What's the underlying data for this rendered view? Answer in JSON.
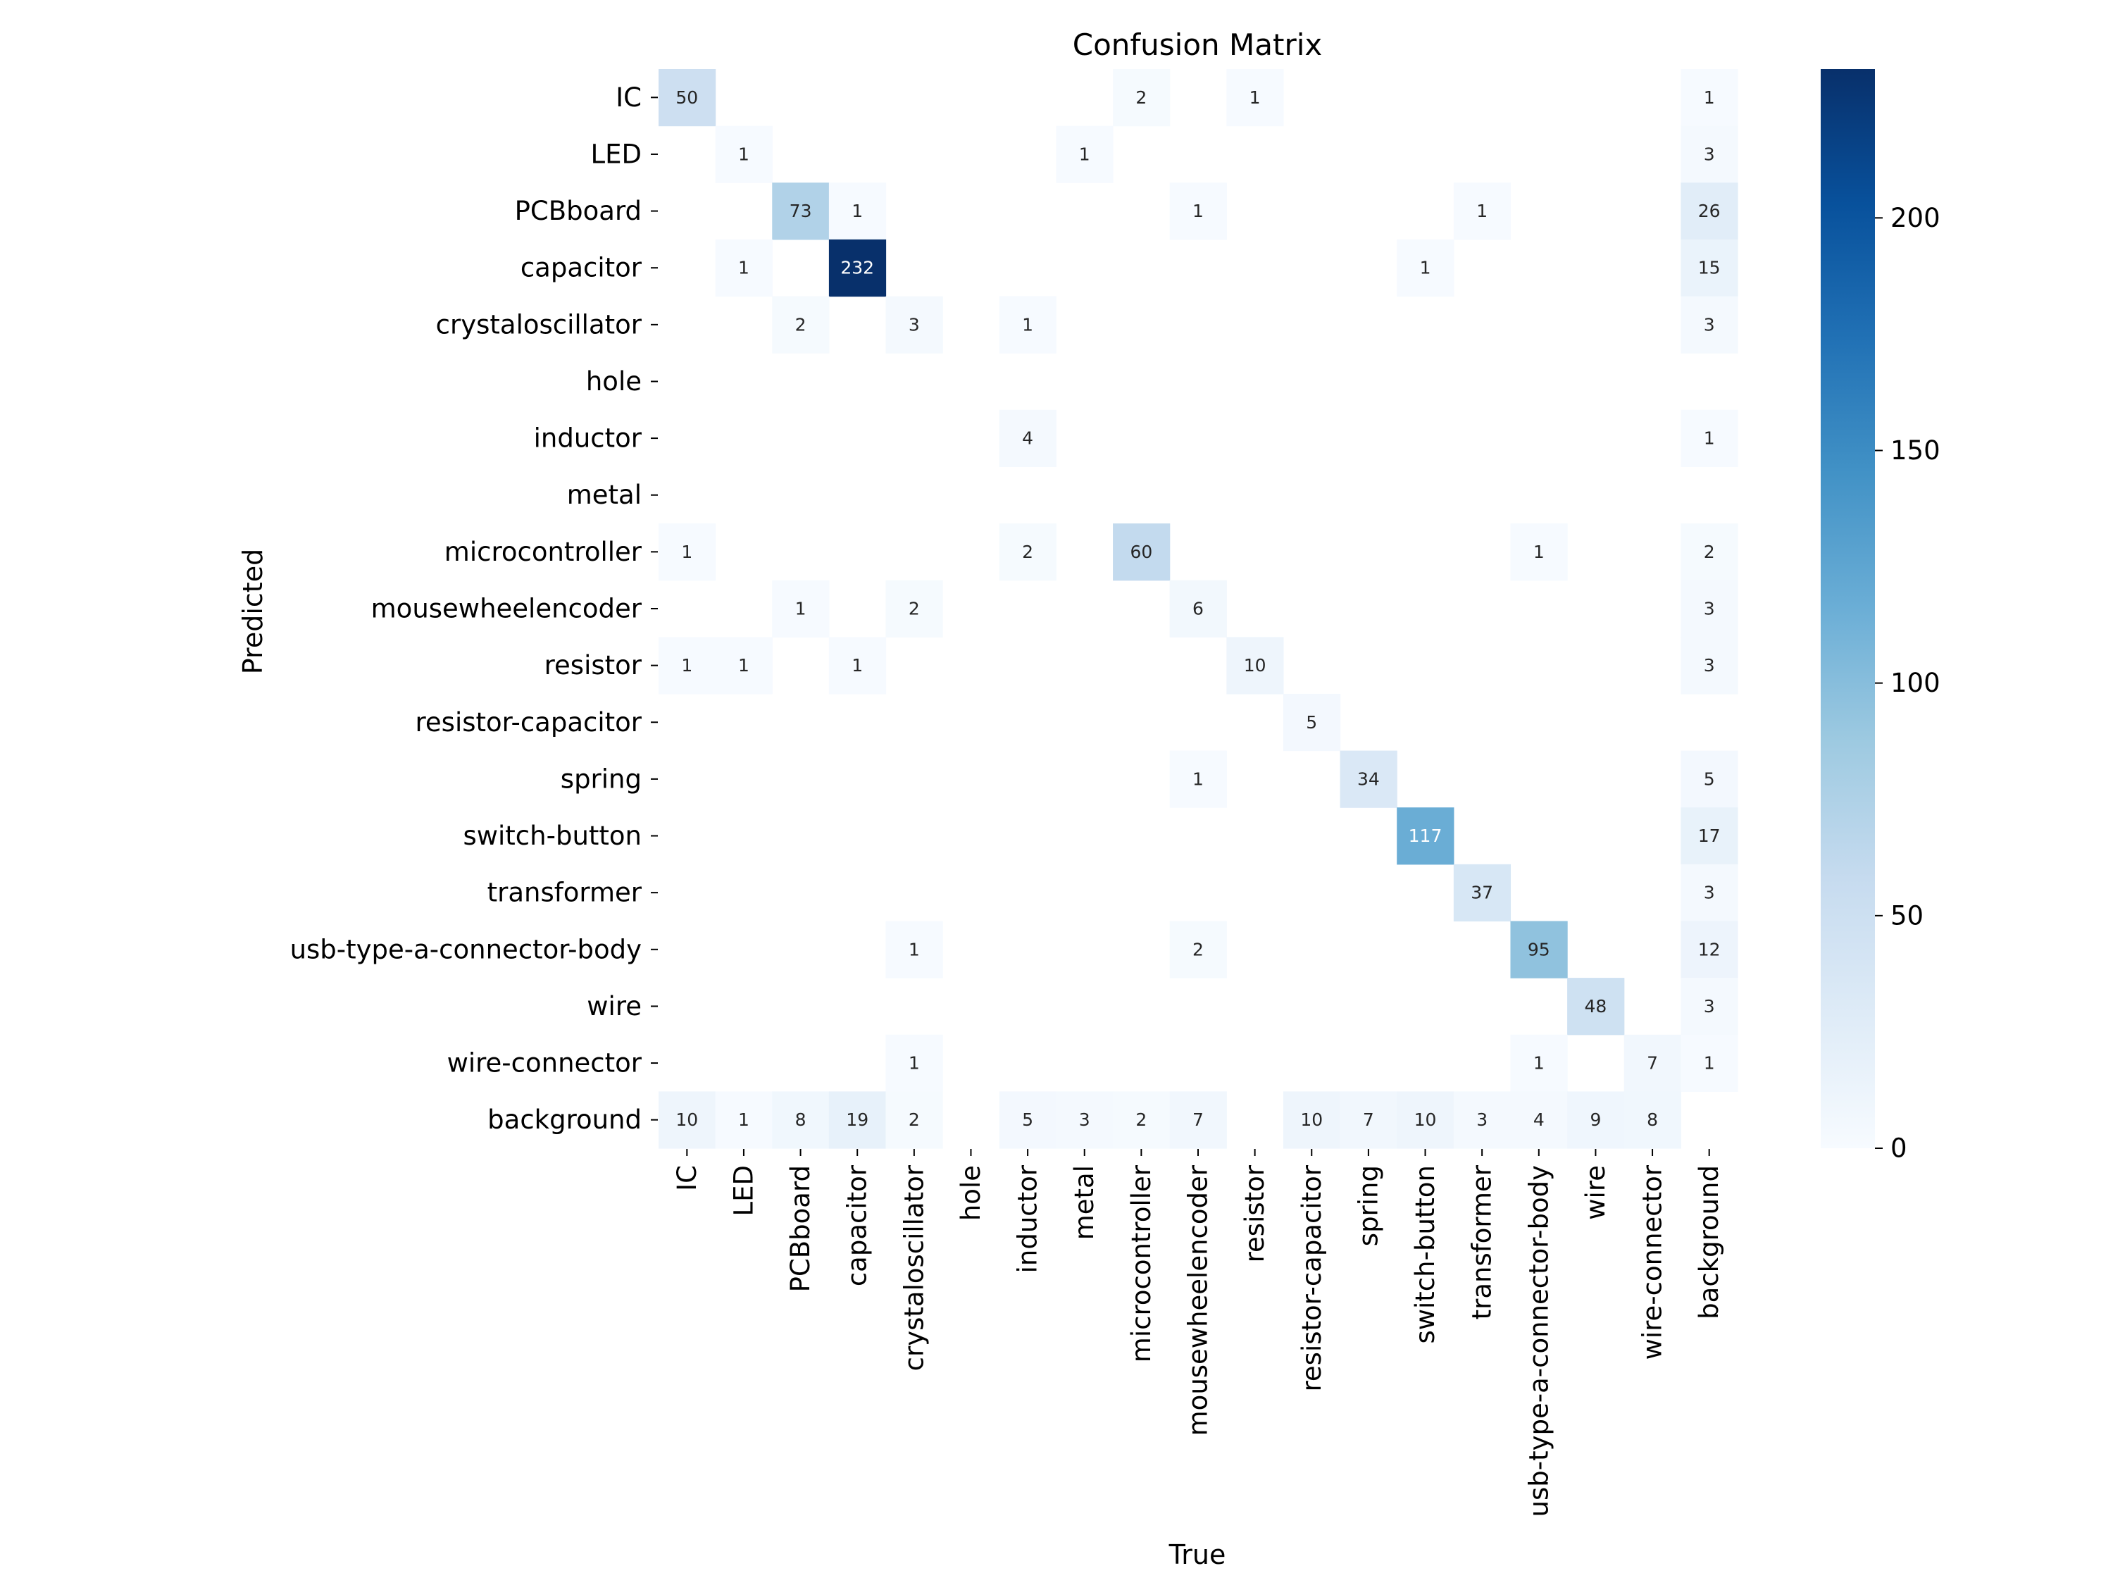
{
  "chart_data": {
    "type": "heatmap",
    "title": "Confusion Matrix",
    "xlabel": "True",
    "ylabel": "Predicted",
    "labels": [
      "IC",
      "LED",
      "PCBboard",
      "capacitor",
      "crystaloscillator",
      "hole",
      "inductor",
      "metal",
      "microcontroller",
      "mousewheelencoder",
      "resistor",
      "resistor-capacitor",
      "spring",
      "switch-button",
      "transformer",
      "usb-type-a-connector-body",
      "wire",
      "wire-connector",
      "background"
    ],
    "matrix": [
      [
        50,
        0,
        0,
        0,
        0,
        0,
        0,
        0,
        2,
        0,
        1,
        0,
        0,
        0,
        0,
        0,
        0,
        0,
        1
      ],
      [
        0,
        1,
        0,
        0,
        0,
        0,
        0,
        1,
        0,
        0,
        0,
        0,
        0,
        0,
        0,
        0,
        0,
        0,
        3
      ],
      [
        0,
        0,
        73,
        1,
        0,
        0,
        0,
        0,
        0,
        1,
        0,
        0,
        0,
        0,
        1,
        0,
        0,
        0,
        26
      ],
      [
        0,
        1,
        0,
        232,
        0,
        0,
        0,
        0,
        0,
        0,
        0,
        0,
        0,
        1,
        0,
        0,
        0,
        0,
        15
      ],
      [
        0,
        0,
        2,
        0,
        3,
        0,
        1,
        0,
        0,
        0,
        0,
        0,
        0,
        0,
        0,
        0,
        0,
        0,
        3
      ],
      [
        0,
        0,
        0,
        0,
        0,
        0,
        0,
        0,
        0,
        0,
        0,
        0,
        0,
        0,
        0,
        0,
        0,
        0,
        0
      ],
      [
        0,
        0,
        0,
        0,
        0,
        0,
        4,
        0,
        0,
        0,
        0,
        0,
        0,
        0,
        0,
        0,
        0,
        0,
        1
      ],
      [
        0,
        0,
        0,
        0,
        0,
        0,
        0,
        0,
        0,
        0,
        0,
        0,
        0,
        0,
        0,
        0,
        0,
        0,
        0
      ],
      [
        1,
        0,
        0,
        0,
        0,
        0,
        2,
        0,
        60,
        0,
        0,
        0,
        0,
        0,
        0,
        1,
        0,
        0,
        2
      ],
      [
        0,
        0,
        1,
        0,
        2,
        0,
        0,
        0,
        0,
        6,
        0,
        0,
        0,
        0,
        0,
        0,
        0,
        0,
        3
      ],
      [
        1,
        1,
        0,
        1,
        0,
        0,
        0,
        0,
        0,
        0,
        10,
        0,
        0,
        0,
        0,
        0,
        0,
        0,
        3
      ],
      [
        0,
        0,
        0,
        0,
        0,
        0,
        0,
        0,
        0,
        0,
        0,
        5,
        0,
        0,
        0,
        0,
        0,
        0,
        0
      ],
      [
        0,
        0,
        0,
        0,
        0,
        0,
        0,
        0,
        0,
        1,
        0,
        0,
        34,
        0,
        0,
        0,
        0,
        0,
        5
      ],
      [
        0,
        0,
        0,
        0,
        0,
        0,
        0,
        0,
        0,
        0,
        0,
        0,
        0,
        117,
        0,
        0,
        0,
        0,
        17
      ],
      [
        0,
        0,
        0,
        0,
        0,
        0,
        0,
        0,
        0,
        0,
        0,
        0,
        0,
        0,
        37,
        0,
        0,
        0,
        3
      ],
      [
        0,
        0,
        0,
        0,
        1,
        0,
        0,
        0,
        0,
        2,
        0,
        0,
        0,
        0,
        0,
        95,
        0,
        0,
        12
      ],
      [
        0,
        0,
        0,
        0,
        0,
        0,
        0,
        0,
        0,
        0,
        0,
        0,
        0,
        0,
        0,
        0,
        48,
        0,
        3
      ],
      [
        0,
        0,
        0,
        0,
        1,
        0,
        0,
        0,
        0,
        0,
        0,
        0,
        0,
        0,
        0,
        1,
        0,
        7,
        1
      ],
      [
        10,
        1,
        8,
        19,
        2,
        0,
        5,
        3,
        2,
        7,
        0,
        10,
        7,
        10,
        3,
        4,
        9,
        8,
        0
      ]
    ],
    "zero_cells_blank": true,
    "colorbar": {
      "min": 0,
      "max": 232,
      "ticks": [
        0,
        50,
        100,
        150,
        200
      ]
    },
    "colormap": [
      "#f7fbff",
      "#deebf7",
      "#c6dbef",
      "#9ecae1",
      "#6baed6",
      "#4292c6",
      "#2171b5",
      "#08519c",
      "#08306b"
    ]
  }
}
